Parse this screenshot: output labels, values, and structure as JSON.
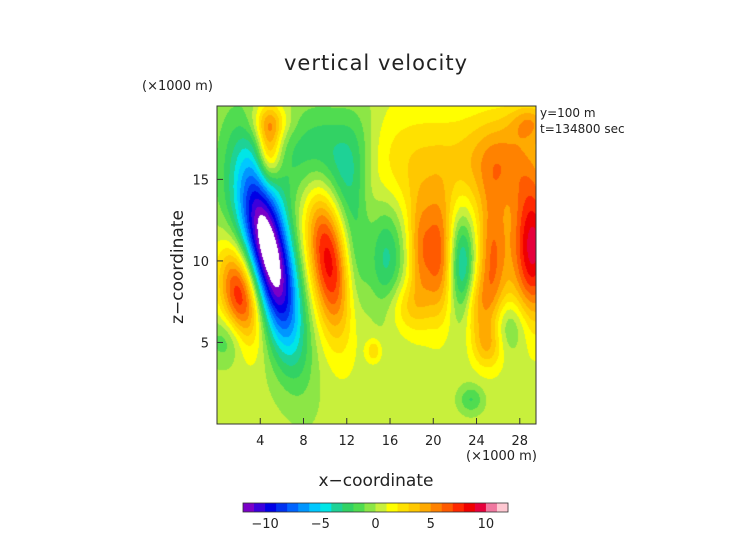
{
  "chart_data": {
    "type": "heatmap",
    "title": "vertical velocity",
    "xlabel": "x−coordinate",
    "ylabel": "z−coordinate",
    "x_unit": "(×1000 m)",
    "y_unit": "(×1000 m)",
    "annotation_lines": [
      "y=100 m",
      "t=134800 sec"
    ],
    "xlim": [
      0,
      29.5
    ],
    "ylim": [
      0,
      19.5
    ],
    "x_ticks": [
      4,
      8,
      12,
      16,
      20,
      24,
      28
    ],
    "y_ticks": [
      5,
      10,
      15
    ],
    "x_tick_labels": [
      "4",
      "8",
      "12",
      "16",
      "20",
      "24",
      "28"
    ],
    "y_tick_labels": [
      "5",
      "10",
      "15"
    ],
    "colorbar": {
      "range": [
        -12,
        12
      ],
      "ticks": [
        -10,
        -5,
        0,
        5,
        10
      ],
      "tick_labels": [
        "−10",
        "−5",
        "0",
        "5",
        "10"
      ],
      "colors": [
        "#7a00c8",
        "#3c00dc",
        "#0000e6",
        "#0032f0",
        "#0064ff",
        "#0096ff",
        "#00c8ff",
        "#00e6e6",
        "#1ed296",
        "#32d264",
        "#50dc50",
        "#8ce646",
        "#c8f03c",
        "#ffff00",
        "#ffe100",
        "#ffc800",
        "#ffaa00",
        "#ff8200",
        "#ff5a00",
        "#ff2800",
        "#f00000",
        "#e6003c",
        "#f078a0",
        "#ffc8d2"
      ]
    },
    "features": [
      {
        "x": 5.0,
        "z": 10.2,
        "sx": 1.4,
        "sz": 4.2,
        "rot": -0.32,
        "a": -12.5
      },
      {
        "x": 3.0,
        "z": 12.0,
        "sx": 2.2,
        "sz": 4.5,
        "rot": -0.25,
        "a": -3.0
      },
      {
        "x": 2.2,
        "z": 8.0,
        "sx": 1.3,
        "sz": 2.3,
        "rot": -0.3,
        "a": 9.0
      },
      {
        "x": 4.8,
        "z": 16.8,
        "sx": 0.8,
        "sz": 1.6,
        "rot": 0.0,
        "a": 5.5
      },
      {
        "x": 10.3,
        "z": 10.2,
        "sx": 1.3,
        "sz": 3.3,
        "rot": -0.2,
        "a": 8.5
      },
      {
        "x": 9.2,
        "z": 16.5,
        "sx": 2.5,
        "sz": 2.2,
        "rot": 0.0,
        "a": -4.0
      },
      {
        "x": 12.2,
        "z": 15.2,
        "sx": 1.4,
        "sz": 3.0,
        "rot": 0.25,
        "a": -2.8
      },
      {
        "x": 12.8,
        "z": 10.2,
        "sx": 0.9,
        "sz": 2.8,
        "rot": 0.0,
        "a": -2.5
      },
      {
        "x": 15.7,
        "z": 10.2,
        "sx": 1.1,
        "sz": 2.6,
        "rot": 0.0,
        "a": -3.8
      },
      {
        "x": 18.8,
        "z": 10.6,
        "sx": 0.8,
        "sz": 2.4,
        "rot": 0.0,
        "a": 4.0
      },
      {
        "x": 20.5,
        "z": 10.3,
        "sx": 0.9,
        "sz": 2.6,
        "rot": 0.0,
        "a": 5.5
      },
      {
        "x": 22.7,
        "z": 9.5,
        "sx": 0.8,
        "sz": 2.3,
        "rot": 0.0,
        "a": -5.0
      },
      {
        "x": 25.5,
        "z": 10.2,
        "sx": 1.0,
        "sz": 3.0,
        "rot": 0.0,
        "a": 5.2
      },
      {
        "x": 29.2,
        "z": 10.8,
        "sx": 1.4,
        "sz": 3.0,
        "rot": 0.0,
        "a": 9.0
      },
      {
        "x": 26.5,
        "z": 16.2,
        "sx": 2.5,
        "sz": 2.0,
        "rot": 0.0,
        "a": 4.0
      },
      {
        "x": 19.0,
        "z": 15.8,
        "sx": 4.5,
        "sz": 2.5,
        "rot": 0.0,
        "a": 2.6
      },
      {
        "x": 5.0,
        "z": 18.5,
        "sx": 1.3,
        "sz": 0.8,
        "rot": 0.0,
        "a": 2.8
      },
      {
        "x": 29.0,
        "z": 18.5,
        "sx": 1.3,
        "sz": 0.8,
        "rot": 0.0,
        "a": 3.0
      },
      {
        "x": 24.0,
        "z": 7.2,
        "sx": 1.2,
        "sz": 1.5,
        "rot": 0.0,
        "a": 3.0
      },
      {
        "x": 17.5,
        "z": 7.2,
        "sx": 1.5,
        "sz": 1.2,
        "rot": 0.0,
        "a": 2.5
      },
      {
        "x": 27.0,
        "z": 6.0,
        "sx": 1.2,
        "sz": 1.2,
        "rot": 0.0,
        "a": -2.5
      },
      {
        "x": 1.0,
        "z": 5.2,
        "sx": 1.3,
        "sz": 1.1,
        "rot": 0.0,
        "a": -2.5
      },
      {
        "x": 25.0,
        "z": 4.8,
        "sx": 1.0,
        "sz": 1.0,
        "rot": 0.0,
        "a": 2.8
      },
      {
        "x": 14.5,
        "z": 4.5,
        "sx": 0.5,
        "sz": 0.5,
        "rot": 0.0,
        "a": 2.5
      },
      {
        "x": 23.5,
        "z": 1.5,
        "sx": 0.8,
        "sz": 0.6,
        "rot": 0.0,
        "a": -2.5
      }
    ]
  }
}
